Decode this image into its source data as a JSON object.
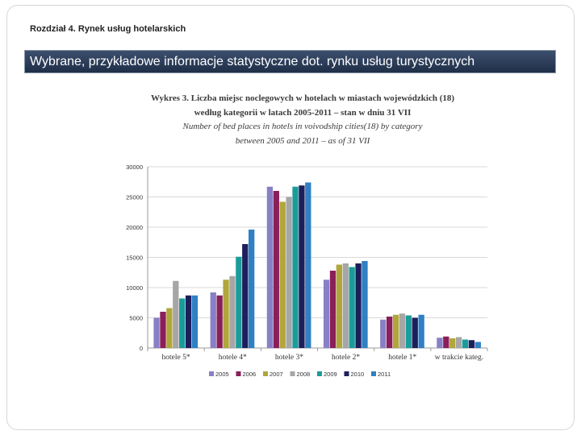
{
  "header": {
    "chapter": "Rozdział 4. Rynek usług hotelarskich",
    "banner": "Wybrane, przykładowe informacje statystyczne dot. rynku usług turystycznych"
  },
  "chart_titles": {
    "line1": "Wykres 3. Liczba miejsc noclegowych w hotelach w miastach wojewódzkich (18)",
    "line2": "według kategorii w latach 2005-2011 – stan w dniu 31 VII",
    "line3": "Number of bed places in hotels in voivodship cities(18) by category",
    "line4": "between 2005 and 2011 – as of 31 VII"
  },
  "chart_data": {
    "type": "bar",
    "title": "Wykres 3. Liczba miejsc noclegowych w hotelach w miastach wojewódzkich (18) według kategorii w latach 2005-2011 – stan w dniu 31 VII",
    "categories": [
      "hotele 5*",
      "hotele 4*",
      "hotele 3*",
      "hotele 2*",
      "hotele 1*",
      "w trakcie kateg."
    ],
    "series": [
      {
        "name": "2005",
        "color": "#8880c6",
        "values": [
          5000,
          9200,
          26700,
          11300,
          4700,
          1700
        ]
      },
      {
        "name": "2006",
        "color": "#8a1f5a",
        "values": [
          6000,
          8700,
          26000,
          12800,
          5200,
          1900
        ]
      },
      {
        "name": "2007",
        "color": "#b0a63a",
        "values": [
          6600,
          11300,
          24200,
          13800,
          5500,
          1600
        ]
      },
      {
        "name": "2008",
        "color": "#a6a6a6",
        "values": [
          11100,
          11900,
          25000,
          14000,
          5700,
          1800
        ]
      },
      {
        "name": "2009",
        "color": "#1b9c9a",
        "values": [
          8200,
          15100,
          26700,
          13400,
          5400,
          1400
        ]
      },
      {
        "name": "2010",
        "color": "#1d1f5c",
        "values": [
          8700,
          17200,
          26900,
          14000,
          5000,
          1300
        ]
      },
      {
        "name": "2011",
        "color": "#2f80c4",
        "values": [
          8700,
          19600,
          27400,
          14400,
          5500,
          1000
        ]
      }
    ],
    "ylim": [
      0,
      30000
    ],
    "yticks": [
      0,
      5000,
      10000,
      15000,
      20000,
      25000,
      30000
    ],
    "xlabel": "",
    "ylabel": "",
    "grid": true,
    "legend": "bottom"
  }
}
